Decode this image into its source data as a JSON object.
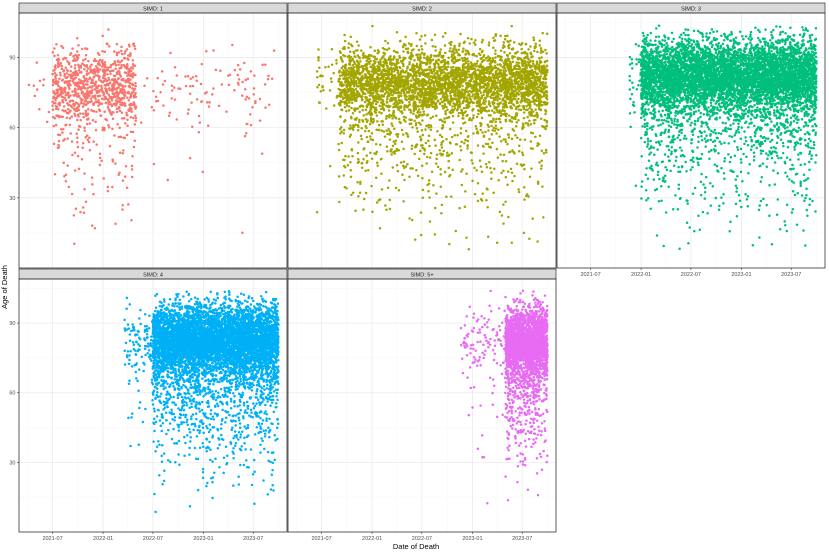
{
  "chart_data": {
    "type": "scatter",
    "xlabel": "Date of Death",
    "ylabel": "Age of Death",
    "x_range": [
      "2021-03-01",
      "2023-11-01"
    ],
    "y_range": [
      0,
      109
    ],
    "x_ticks": [
      {
        "date": "2021-07-01",
        "label": "2021-07"
      },
      {
        "date": "2022-01-01",
        "label": "2022-01"
      },
      {
        "date": "2022-07-01",
        "label": "2022-07"
      },
      {
        "date": "2023-01-01",
        "label": "2023-01"
      },
      {
        "date": "2023-07-01",
        "label": "2023-07"
      }
    ],
    "y_ticks": [
      30,
      60,
      90
    ],
    "grid": true,
    "colors": {
      "panel_border": "#333333",
      "strip_fill": "#d9d9d9",
      "grid_major": "#ebebeb",
      "grid_minor": "#f5f5f5",
      "axis_text": "#4d4d4d"
    },
    "facets": [
      {
        "strip": "SIMD: 1",
        "color": "#f8766d",
        "points": 1100,
        "x_start": "2021-04-05",
        "x_end": "2023-10-01",
        "core_x": [
          "2021-07-01",
          "2022-05-01"
        ],
        "core_y": 78
      },
      {
        "strip": "SIMD: 2",
        "color": "#a3a500",
        "points": 4200,
        "x_start": "2021-06-10",
        "x_end": "2023-10-01",
        "core_x": [
          "2021-09-01",
          "2023-10-01"
        ],
        "core_y": 80
      },
      {
        "strip": "SIMD: 3",
        "color": "#00bf7d",
        "points": 6500,
        "x_start": "2021-11-15",
        "x_end": "2023-10-01",
        "core_x": [
          "2022-01-01",
          "2023-10-01"
        ],
        "core_y": 83
      },
      {
        "strip": "SIMD: 4",
        "color": "#00b0f6",
        "points": 6500,
        "x_start": "2022-03-20",
        "x_end": "2023-10-01",
        "core_x": [
          "2022-07-01",
          "2023-10-01"
        ],
        "core_y": 83
      },
      {
        "strip": "SIMD: 5+",
        "color": "#e76bf3",
        "points": 2600,
        "x_start": "2022-11-20",
        "x_end": "2023-10-01",
        "core_x": [
          "2023-05-01",
          "2023-10-01"
        ],
        "core_y": 82
      }
    ]
  }
}
